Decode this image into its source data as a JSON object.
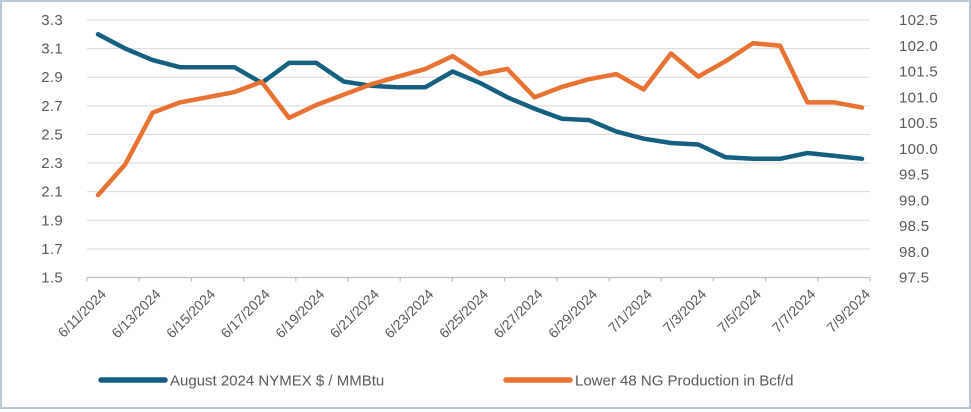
{
  "chart_data": {
    "type": "line",
    "title": "",
    "x": [
      "6/11/2024",
      "6/12/2024",
      "6/13/2024",
      "6/14/2024",
      "6/15/2024",
      "6/16/2024",
      "6/17/2024",
      "6/18/2024",
      "6/19/2024",
      "6/20/2024",
      "6/21/2024",
      "6/22/2024",
      "6/23/2024",
      "6/24/2024",
      "6/25/2024",
      "6/26/2024",
      "6/27/2024",
      "6/28/2024",
      "6/29/2024",
      "6/30/2024",
      "7/1/2024",
      "7/2/2024",
      "7/3/2024",
      "7/4/2024",
      "7/5/2024",
      "7/6/2024",
      "7/7/2024",
      "7/8/2024",
      "7/9/2024"
    ],
    "x_tick_labels": [
      "6/11/2024",
      "6/13/2024",
      "6/15/2024",
      "6/17/2024",
      "6/19/2024",
      "6/21/2024",
      "6/23/2024",
      "6/25/2024",
      "6/27/2024",
      "6/29/2024",
      "7/1/2024",
      "7/3/2024",
      "7/5/2024",
      "7/7/2024",
      "7/9/2024"
    ],
    "series": [
      {
        "name": "August 2024 NYMEX $ / MMBtu",
        "axis": "left",
        "color": "#156082",
        "values": [
          3.2,
          3.1,
          3.02,
          2.97,
          2.97,
          2.97,
          2.86,
          3.0,
          3.0,
          2.87,
          2.84,
          2.83,
          2.83,
          2.94,
          2.86,
          2.76,
          2.68,
          2.61,
          2.6,
          2.52,
          2.47,
          2.44,
          2.43,
          2.34,
          2.33,
          2.33,
          2.37,
          2.35,
          2.33
        ]
      },
      {
        "name": "Lower 48 NG Production in Bcf/d",
        "axis": "right",
        "color": "#E97132",
        "values": [
          99.1,
          99.7,
          100.7,
          100.9,
          101.0,
          101.1,
          101.3,
          100.6,
          100.85,
          101.05,
          101.25,
          101.4,
          101.55,
          101.8,
          101.45,
          101.55,
          101.0,
          101.2,
          101.35,
          101.45,
          101.15,
          101.85,
          101.4,
          101.7,
          102.05,
          102.0,
          100.9,
          100.9,
          100.8
        ]
      }
    ],
    "left_axis": {
      "min": 1.5,
      "max": 3.3,
      "step": 0.2,
      "labels": [
        "3.3",
        "3.1",
        "2.9",
        "2.7",
        "2.5",
        "2.3",
        "2.1",
        "1.9",
        "1.7",
        "1.5"
      ]
    },
    "right_axis": {
      "min": 97.5,
      "max": 102.5,
      "step": 0.5,
      "labels": [
        "102.5",
        "102.0",
        "101.5",
        "101.0",
        "100.5",
        "100.0",
        "99.5",
        "99.0",
        "98.5",
        "98.0",
        "97.5"
      ]
    },
    "grid": true,
    "legend_position": "bottom",
    "style": {
      "gridline_color": "#d9d9d9",
      "axis_line_color": "#bfbfbf",
      "label_color": "#595959",
      "line_width": 4.5
    }
  }
}
